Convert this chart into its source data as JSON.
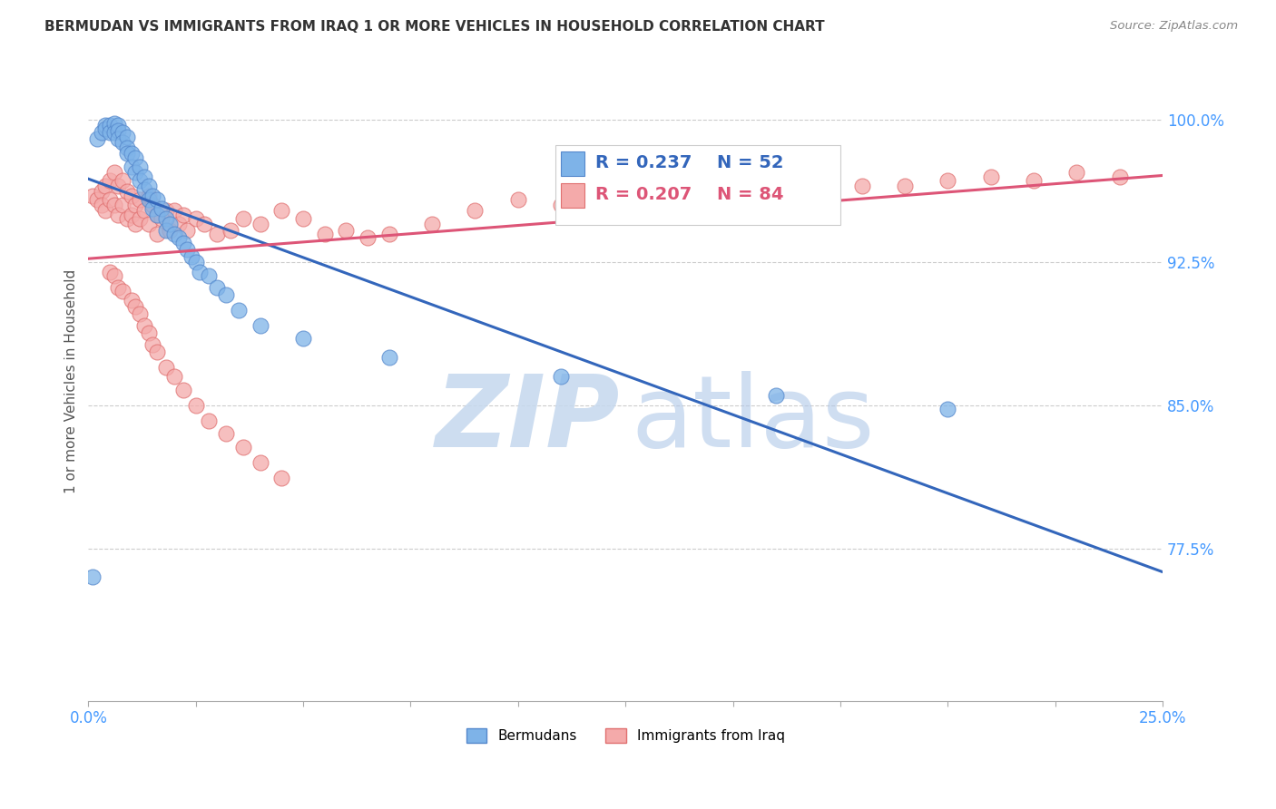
{
  "title": "BERMUDAN VS IMMIGRANTS FROM IRAQ 1 OR MORE VEHICLES IN HOUSEHOLD CORRELATION CHART",
  "source": "Source: ZipAtlas.com",
  "ylabel": "1 or more Vehicles in Household",
  "ytick_labels": [
    "100.0%",
    "92.5%",
    "85.0%",
    "77.5%"
  ],
  "ytick_values": [
    1.0,
    0.925,
    0.85,
    0.775
  ],
  "xlim": [
    0.0,
    0.25
  ],
  "ylim": [
    0.695,
    1.03
  ],
  "legend_blue_r": "0.237",
  "legend_blue_n": "52",
  "legend_pink_r": "0.207",
  "legend_pink_n": "84",
  "blue_scatter_color": "#7EB3E8",
  "blue_edge_color": "#5588CC",
  "pink_scatter_color": "#F4AAAA",
  "pink_edge_color": "#E07070",
  "blue_line_color": "#3366BB",
  "pink_line_color": "#DD5577",
  "title_color": "#333333",
  "axis_label_color": "#555555",
  "tick_label_color": "#4499FF",
  "grid_color": "#CCCCCC",
  "source_color": "#888888",
  "watermark_zip_color": "#C5D8EE",
  "watermark_atlas_color": "#B0C8E8",
  "bermuda_x": [
    0.001,
    0.002,
    0.003,
    0.004,
    0.004,
    0.005,
    0.005,
    0.006,
    0.006,
    0.007,
    0.007,
    0.007,
    0.008,
    0.008,
    0.009,
    0.009,
    0.009,
    0.01,
    0.01,
    0.011,
    0.011,
    0.012,
    0.012,
    0.013,
    0.013,
    0.014,
    0.014,
    0.015,
    0.015,
    0.016,
    0.016,
    0.017,
    0.018,
    0.018,
    0.019,
    0.02,
    0.021,
    0.022,
    0.023,
    0.024,
    0.025,
    0.026,
    0.028,
    0.03,
    0.032,
    0.035,
    0.04,
    0.05,
    0.07,
    0.11,
    0.16,
    0.2
  ],
  "bermuda_y": [
    0.76,
    0.99,
    0.993,
    0.997,
    0.995,
    0.997,
    0.993,
    0.998,
    0.993,
    0.997,
    0.994,
    0.99,
    0.993,
    0.988,
    0.991,
    0.985,
    0.982,
    0.982,
    0.975,
    0.98,
    0.972,
    0.975,
    0.968,
    0.97,
    0.963,
    0.965,
    0.958,
    0.96,
    0.953,
    0.958,
    0.95,
    0.953,
    0.948,
    0.942,
    0.945,
    0.94,
    0.938,
    0.935,
    0.932,
    0.928,
    0.925,
    0.92,
    0.918,
    0.912,
    0.908,
    0.9,
    0.892,
    0.885,
    0.875,
    0.865,
    0.855,
    0.848
  ],
  "iraq_x": [
    0.001,
    0.002,
    0.003,
    0.003,
    0.004,
    0.004,
    0.005,
    0.005,
    0.006,
    0.006,
    0.007,
    0.007,
    0.008,
    0.008,
    0.009,
    0.009,
    0.01,
    0.01,
    0.011,
    0.011,
    0.012,
    0.012,
    0.013,
    0.014,
    0.014,
    0.015,
    0.016,
    0.016,
    0.017,
    0.018,
    0.019,
    0.02,
    0.021,
    0.022,
    0.023,
    0.025,
    0.027,
    0.03,
    0.033,
    0.036,
    0.04,
    0.045,
    0.05,
    0.055,
    0.06,
    0.065,
    0.07,
    0.08,
    0.09,
    0.1,
    0.11,
    0.12,
    0.13,
    0.14,
    0.15,
    0.16,
    0.17,
    0.18,
    0.19,
    0.2,
    0.21,
    0.22,
    0.23,
    0.24,
    0.005,
    0.006,
    0.007,
    0.008,
    0.01,
    0.011,
    0.012,
    0.013,
    0.014,
    0.015,
    0.016,
    0.018,
    0.02,
    0.022,
    0.025,
    0.028,
    0.032,
    0.036,
    0.04,
    0.045
  ],
  "iraq_y": [
    0.96,
    0.958,
    0.962,
    0.955,
    0.965,
    0.952,
    0.968,
    0.958,
    0.972,
    0.955,
    0.965,
    0.95,
    0.968,
    0.955,
    0.962,
    0.948,
    0.96,
    0.95,
    0.955,
    0.945,
    0.958,
    0.948,
    0.952,
    0.96,
    0.945,
    0.955,
    0.95,
    0.94,
    0.948,
    0.952,
    0.942,
    0.952,
    0.945,
    0.95,
    0.942,
    0.948,
    0.945,
    0.94,
    0.942,
    0.948,
    0.945,
    0.952,
    0.948,
    0.94,
    0.942,
    0.938,
    0.94,
    0.945,
    0.952,
    0.958,
    0.955,
    0.96,
    0.958,
    0.962,
    0.958,
    0.96,
    0.962,
    0.965,
    0.965,
    0.968,
    0.97,
    0.968,
    0.972,
    0.97,
    0.92,
    0.918,
    0.912,
    0.91,
    0.905,
    0.902,
    0.898,
    0.892,
    0.888,
    0.882,
    0.878,
    0.87,
    0.865,
    0.858,
    0.85,
    0.842,
    0.835,
    0.828,
    0.82,
    0.812
  ]
}
